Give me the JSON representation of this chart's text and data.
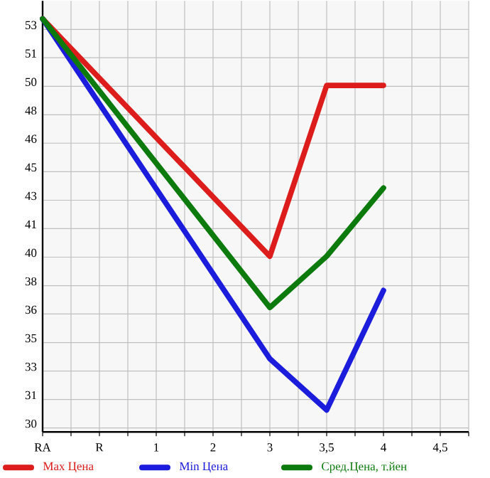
{
  "chart_data": {
    "type": "line",
    "categories": [
      "RA",
      "R",
      "1",
      "2",
      "3",
      "3,5",
      "4",
      "4,5"
    ],
    "series": [
      {
        "name": "Max Цена",
        "color": "#dd1c1c",
        "values": [
          53.6,
          null,
          null,
          null,
          39.7,
          49.7,
          49.7,
          null
        ]
      },
      {
        "name": "Min Цена",
        "color": "#1c1cdd",
        "values": [
          53.6,
          null,
          null,
          null,
          33.7,
          30.7,
          37.7,
          null
        ]
      },
      {
        "name": "Сред.Цена, т.йен",
        "color": "#0c7a0c",
        "values": [
          53.6,
          null,
          null,
          null,
          36.7,
          39.7,
          43.7,
          null
        ]
      }
    ],
    "ylim": [
      29.42,
      54.65
    ],
    "yticks": [
      {
        "value": 52.98,
        "label": "53"
      },
      {
        "value": 51.32,
        "label": "51"
      },
      {
        "value": 49.65,
        "label": "50"
      },
      {
        "value": 47.98,
        "label": "48"
      },
      {
        "value": 46.32,
        "label": "46"
      },
      {
        "value": 44.65,
        "label": "45"
      },
      {
        "value": 42.98,
        "label": "43"
      },
      {
        "value": 41.32,
        "label": "41"
      },
      {
        "value": 39.65,
        "label": "40"
      },
      {
        "value": 37.98,
        "label": "38"
      },
      {
        "value": 36.32,
        "label": "36"
      },
      {
        "value": 34.65,
        "label": "35"
      },
      {
        "value": 32.98,
        "label": "33"
      },
      {
        "value": 31.32,
        "label": "31"
      },
      {
        "value": 29.65,
        "label": "30"
      }
    ],
    "grid": true,
    "legend": "bottom",
    "marker": "none",
    "line_style": "solid"
  }
}
